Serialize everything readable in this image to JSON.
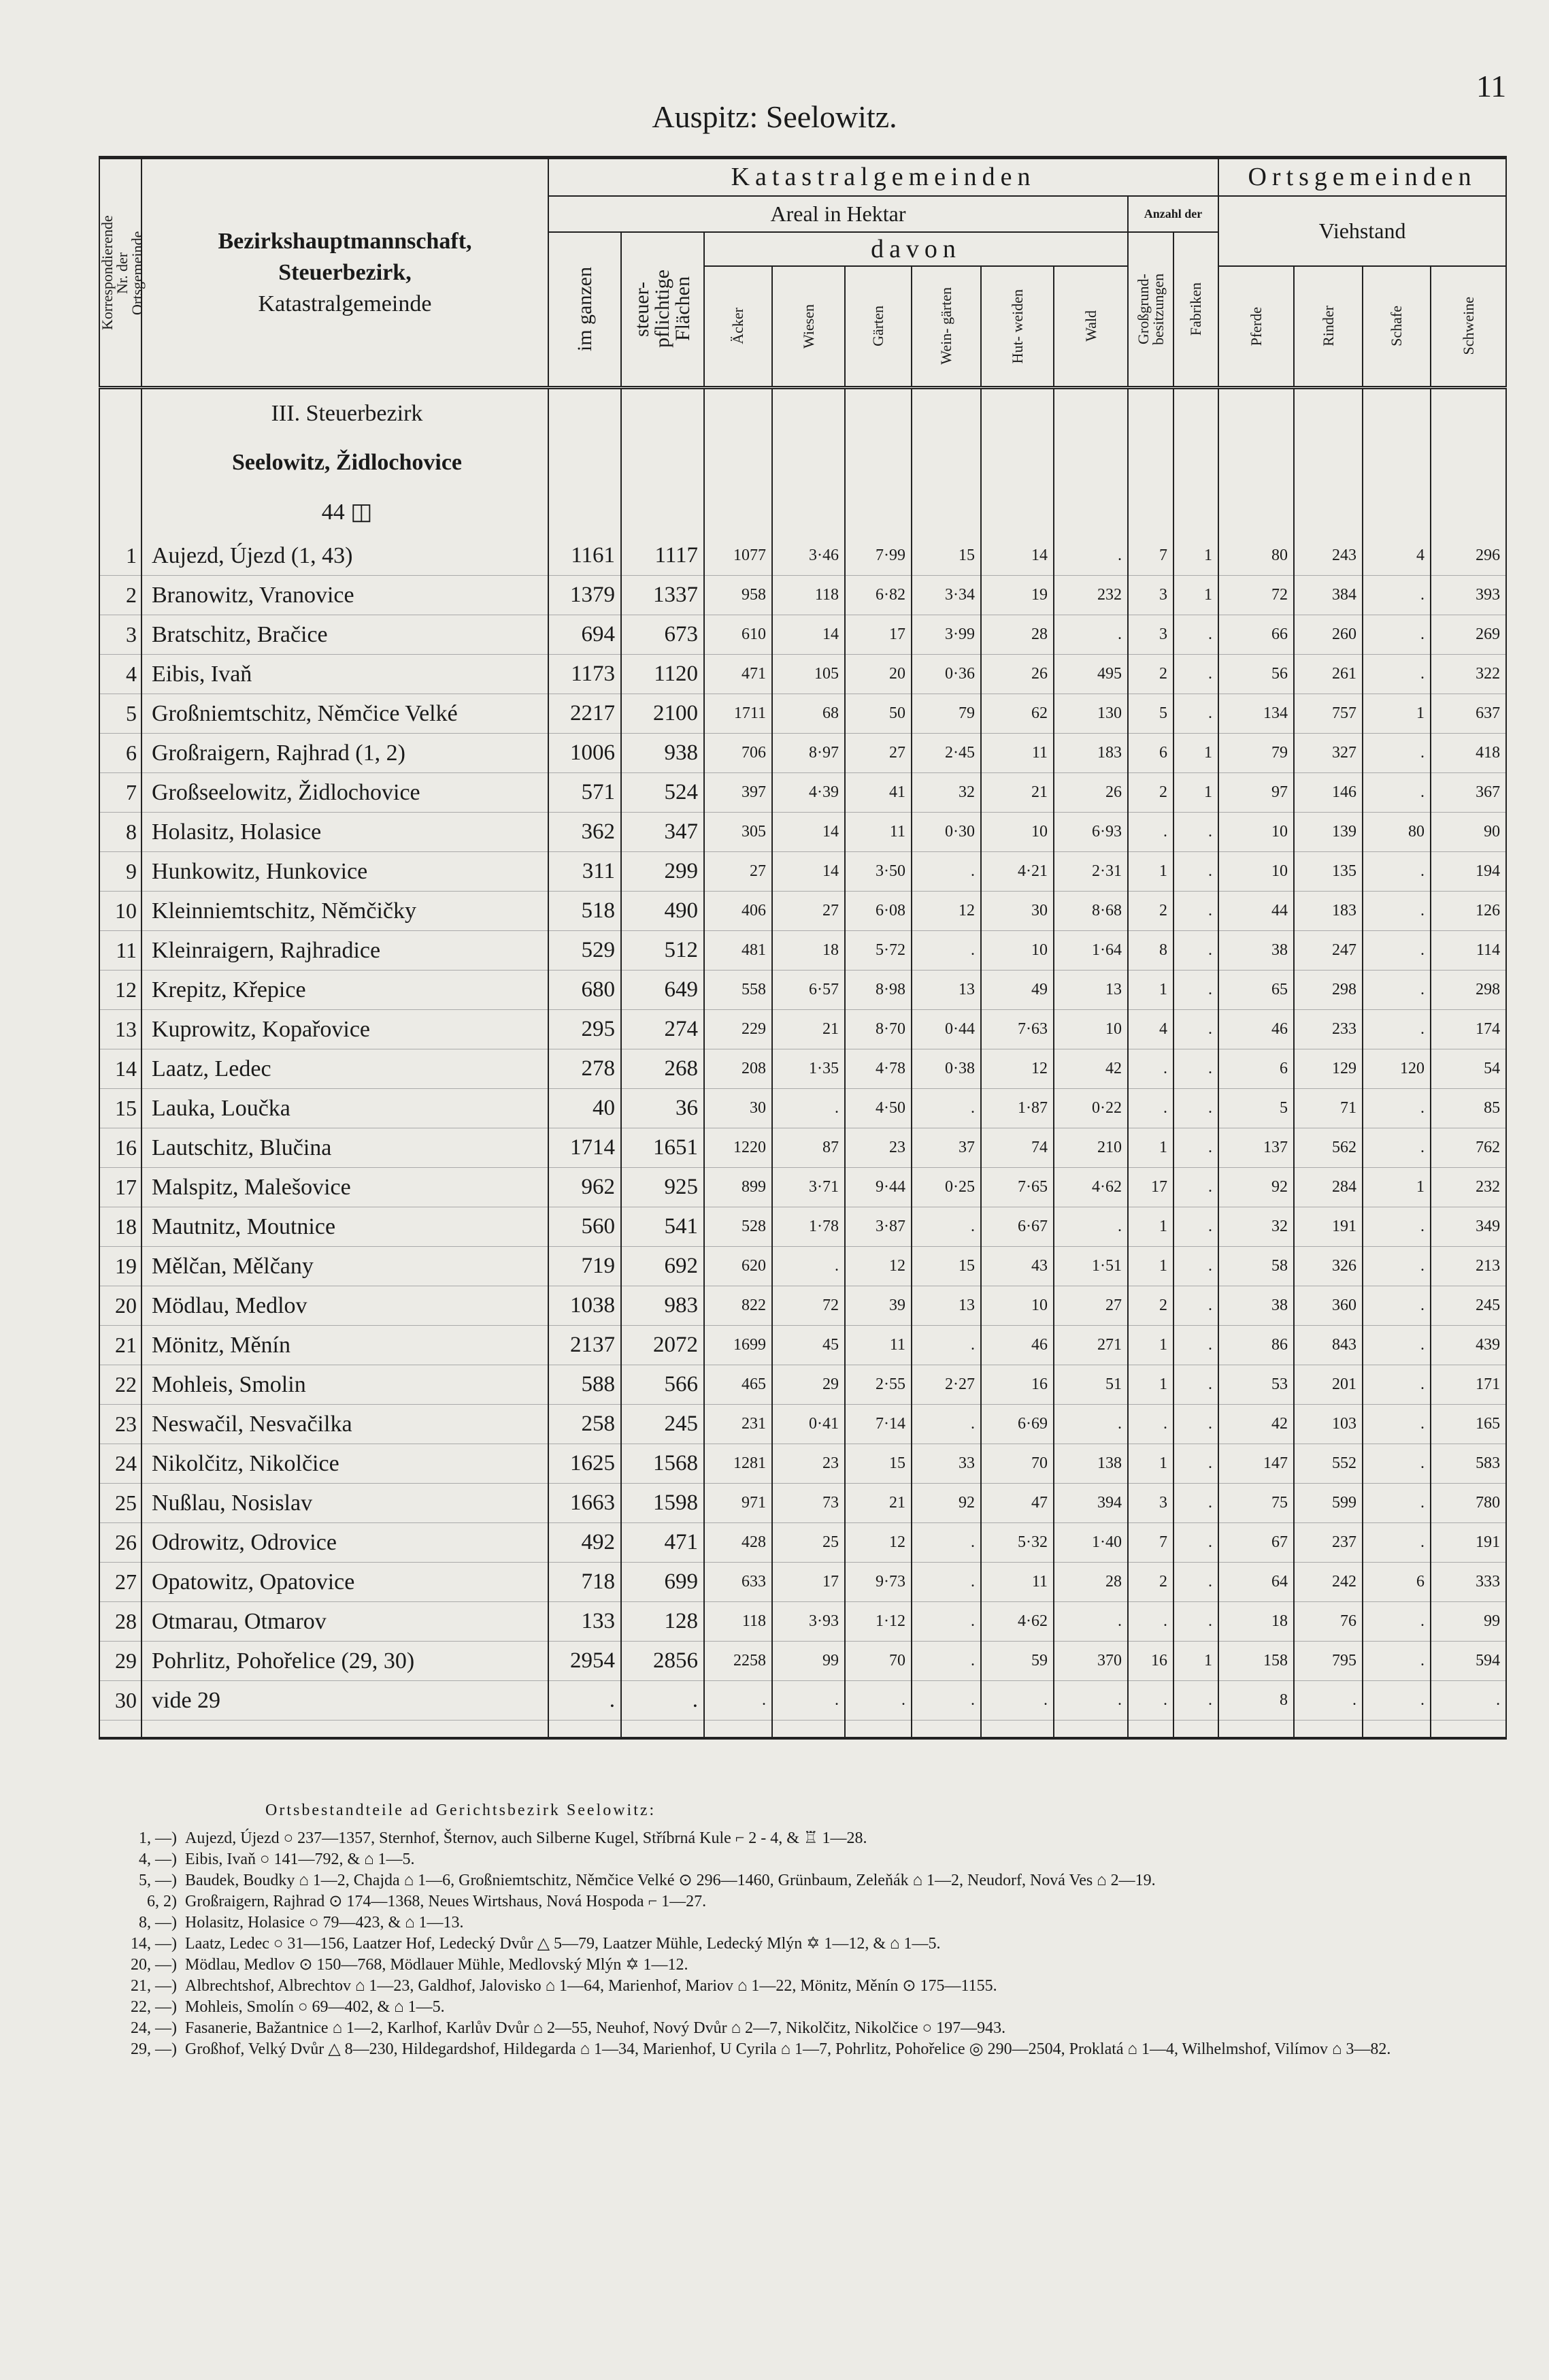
{
  "header": {
    "title": "Auspitz: Seelowitz.",
    "page_number": "11"
  },
  "table": {
    "headers": {
      "nr": "Korrespondierende Nr. der Ortsgemeinde",
      "name": [
        "Bezirkshauptmannschaft,",
        "Steuerbezirk,",
        "Katastralgemeinde"
      ],
      "katastral": "Katastralgemeinden",
      "orts": "Ortsgemeinden",
      "areal": "Areal in Hektar",
      "anzahl": "Anzahl der",
      "davon": "davon",
      "viehstand": "Viehstand",
      "columns": [
        "im ganzen",
        "steuer- pflichtige Flächen",
        "Äcker",
        "Wiesen",
        "Gärten",
        "Wein- gärten",
        "Hut- weiden",
        "Wald",
        "Großgrund- besitzungen",
        "Fabriken",
        "Pferde",
        "Rinder",
        "Schafe",
        "Schweine"
      ]
    },
    "section": [
      "III. Steuerbezirk",
      "Seelowitz, Židlochovice",
      "44 ◫"
    ],
    "rows": [
      [
        "1",
        "Aujezd, Újezd (1, 43)",
        "1161",
        "1117",
        "1077",
        "3·46",
        "7·99",
        "15",
        "14",
        ".",
        "7",
        "1",
        "80",
        "243",
        "4",
        "296"
      ],
      [
        "2",
        "Branowitz, Vranovice",
        "1379",
        "1337",
        "958",
        "118",
        "6·82",
        "3·34",
        "19",
        "232",
        "3",
        "1",
        "72",
        "384",
        ".",
        "393"
      ],
      [
        "3",
        "Bratschitz, Bračice",
        "694",
        "673",
        "610",
        "14",
        "17",
        "3·99",
        "28",
        ".",
        "3",
        ".",
        "66",
        "260",
        ".",
        "269"
      ],
      [
        "4",
        "Eibis, Ivaň",
        "1173",
        "1120",
        "471",
        "105",
        "20",
        "0·36",
        "26",
        "495",
        "2",
        ".",
        "56",
        "261",
        ".",
        "322"
      ],
      [
        "5",
        "Großniemtschitz, Němčice Velké",
        "2217",
        "2100",
        "1711",
        "68",
        "50",
        "79",
        "62",
        "130",
        "5",
        ".",
        "134",
        "757",
        "1",
        "637"
      ],
      [
        "6",
        "Großraigern, Rajhrad (1, 2)",
        "1006",
        "938",
        "706",
        "8·97",
        "27",
        "2·45",
        "11",
        "183",
        "6",
        "1",
        "79",
        "327",
        ".",
        "418"
      ],
      [
        "7",
        "Großseelowitz, Židlochovice",
        "571",
        "524",
        "397",
        "4·39",
        "41",
        "32",
        "21",
        "26",
        "2",
        "1",
        "97",
        "146",
        ".",
        "367"
      ],
      [
        "8",
        "Holasitz, Holasice",
        "362",
        "347",
        "305",
        "14",
        "11",
        "0·30",
        "10",
        "6·93",
        ".",
        ".",
        "10",
        "139",
        "80",
        "90"
      ],
      [
        "9",
        "Hunkowitz, Hunkovice",
        "311",
        "299",
        "27",
        "14",
        "3·50",
        ".",
        "4·21",
        "2·31",
        "1",
        ".",
        "10",
        "135",
        ".",
        "194"
      ],
      [
        "10",
        "Kleinniemtschitz, Němčičky",
        "518",
        "490",
        "406",
        "27",
        "6·08",
        "12",
        "30",
        "8·68",
        "2",
        ".",
        "44",
        "183",
        ".",
        "126"
      ],
      [
        "11",
        "Kleinraigern, Rajhradice",
        "529",
        "512",
        "481",
        "18",
        "5·72",
        ".",
        "10",
        "1·64",
        "8",
        ".",
        "38",
        "247",
        ".",
        "114"
      ],
      [
        "12",
        "Krepitz, Křepice",
        "680",
        "649",
        "558",
        "6·57",
        "8·98",
        "13",
        "49",
        "13",
        "1",
        ".",
        "65",
        "298",
        ".",
        "298"
      ],
      [
        "13",
        "Kuprowitz, Kopařovice",
        "295",
        "274",
        "229",
        "21",
        "8·70",
        "0·44",
        "7·63",
        "10",
        "4",
        ".",
        "46",
        "233",
        ".",
        "174"
      ],
      [
        "14",
        "Laatz, Ledec",
        "278",
        "268",
        "208",
        "1·35",
        "4·78",
        "0·38",
        "12",
        "42",
        ".",
        ".",
        "6",
        "129",
        "120",
        "54"
      ],
      [
        "15",
        "Lauka, Loučka",
        "40",
        "36",
        "30",
        ".",
        "4·50",
        ".",
        "1·87",
        "0·22",
        ".",
        ".",
        "5",
        "71",
        ".",
        "85"
      ],
      [
        "16",
        "Lautschitz, Blučina",
        "1714",
        "1651",
        "1220",
        "87",
        "23",
        "37",
        "74",
        "210",
        "1",
        ".",
        "137",
        "562",
        ".",
        "762"
      ],
      [
        "17",
        "Malspitz, Malešovice",
        "962",
        "925",
        "899",
        "3·71",
        "9·44",
        "0·25",
        "7·65",
        "4·62",
        "17",
        ".",
        "92",
        "284",
        "1",
        "232"
      ],
      [
        "18",
        "Mautnitz, Moutnice",
        "560",
        "541",
        "528",
        "1·78",
        "3·87",
        ".",
        "6·67",
        ".",
        "1",
        ".",
        "32",
        "191",
        ".",
        "349"
      ],
      [
        "19",
        "Mělčan, Mělčany",
        "719",
        "692",
        "620",
        ".",
        "12",
        "15",
        "43",
        "1·51",
        "1",
        ".",
        "58",
        "326",
        ".",
        "213"
      ],
      [
        "20",
        "Mödlau, Medlov",
        "1038",
        "983",
        "822",
        "72",
        "39",
        "13",
        "10",
        "27",
        "2",
        ".",
        "38",
        "360",
        ".",
        "245"
      ],
      [
        "21",
        "Mönitz, Měnín",
        "2137",
        "2072",
        "1699",
        "45",
        "11",
        ".",
        "46",
        "271",
        "1",
        ".",
        "86",
        "843",
        ".",
        "439"
      ],
      [
        "22",
        "Mohleis, Smolin",
        "588",
        "566",
        "465",
        "29",
        "2·55",
        "2·27",
        "16",
        "51",
        "1",
        ".",
        "53",
        "201",
        ".",
        "171"
      ],
      [
        "23",
        "Neswačil, Nesvačilka",
        "258",
        "245",
        "231",
        "0·41",
        "7·14",
        ".",
        "6·69",
        ".",
        ".",
        ".",
        "42",
        "103",
        ".",
        "165"
      ],
      [
        "24",
        "Nikolčitz, Nikolčice",
        "1625",
        "1568",
        "1281",
        "23",
        "15",
        "33",
        "70",
        "138",
        "1",
        ".",
        "147",
        "552",
        ".",
        "583"
      ],
      [
        "25",
        "Nußlau, Nosislav",
        "1663",
        "1598",
        "971",
        "73",
        "21",
        "92",
        "47",
        "394",
        "3",
        ".",
        "75",
        "599",
        ".",
        "780"
      ],
      [
        "26",
        "Odrowitz, Odrovice",
        "492",
        "471",
        "428",
        "25",
        "12",
        ".",
        "5·32",
        "1·40",
        "7",
        ".",
        "67",
        "237",
        ".",
        "191"
      ],
      [
        "27",
        "Opatowitz, Opatovice",
        "718",
        "699",
        "633",
        "17",
        "9·73",
        ".",
        "11",
        "28",
        "2",
        ".",
        "64",
        "242",
        "6",
        "333"
      ],
      [
        "28",
        "Otmarau, Otmarov",
        "133",
        "128",
        "118",
        "3·93",
        "1·12",
        ".",
        "4·62",
        ".",
        ".",
        ".",
        "18",
        "76",
        ".",
        "99"
      ],
      [
        "29",
        "Pohrlitz, Pohořelice (29, 30)",
        "2954",
        "2856",
        "2258",
        "99",
        "70",
        ".",
        "59",
        "370",
        "16",
        "1",
        "158",
        "795",
        ".",
        "594"
      ],
      [
        "30",
        "vide 29",
        ".",
        ".",
        ".",
        ".",
        ".",
        ".",
        ".",
        ".",
        ".",
        ".",
        "8",
        ".",
        ".",
        "."
      ]
    ]
  },
  "footnotes": {
    "title": "Ortsbestandteile ad Gerichtsbezirk Seelowitz:",
    "lines": [
      {
        "ref": "1, —)",
        "text": "Aujezd, Újezd ○ 237—1357, Sternhof, Šternov, auch Silberne Kugel, Stříbrná Kule ⌐ 2 - 4, & ♖ 1—28."
      },
      {
        "ref": "4, —)",
        "text": "Eibis, Ivaň ○ 141—792, & ⌂ 1—5."
      },
      {
        "ref": "5, —)",
        "text": "Baudek, Boudky ⌂ 1—2, Chajda ⌂ 1—6, Großniemtschitz, Němčice Velké ⊙ 296—1460, Grünbaum, Zeleňák ⌂ 1—2, Neudorf, Nová Ves ⌂ 2—19."
      },
      {
        "ref": "6, 2)",
        "text": "Großraigern, Rajhrad ⊙ 174—1368, Neues Wirtshaus, Nová Hospoda ⌐ 1—27."
      },
      {
        "ref": "8, —)",
        "text": "Holasitz, Holasice ○ 79—423, & ⌂ 1—13."
      },
      {
        "ref": "14, —)",
        "text": "Laatz, Ledec ○ 31—156, Laatzer Hof, Ledecký Dvůr △ 5—79, Laatzer Mühle, Ledecký Mlýn ✡ 1—12, & ⌂ 1—5."
      },
      {
        "ref": "20, —)",
        "text": "Mödlau, Medlov ⊙ 150—768, Mödlauer Mühle, Medlovský Mlýn ✡ 1—12."
      },
      {
        "ref": "21, —)",
        "text": "Albrechtshof, Albrechtov ⌂ 1—23, Galdhof, Jalovisko ⌂ 1—64, Marienhof, Mariov ⌂ 1—22, Mönitz, Měnín ⊙ 175—1155."
      },
      {
        "ref": "22, —)",
        "text": "Mohleis, Smolín ○ 69—402, & ⌂ 1—5."
      },
      {
        "ref": "24, —)",
        "text": "Fasanerie, Bažantnice ⌂ 1—2, Karlhof, Karlův Dvůr ⌂ 2—55, Neuhof, Nový Dvůr ⌂ 2—7, Nikolčitz, Nikolčice ○ 197—943."
      },
      {
        "ref": "29, —)",
        "text": "Großhof, Velký Dvůr △ 8—230, Hildegardshof, Hildegarda ⌂ 1—34, Marienhof, U Cyrila ⌂ 1—7, Pohrlitz, Pohořelice ◎ 290—2504, Proklatá ⌂ 1—4, Wilhelmshof, Vilímov ⌂ 3—82."
      }
    ]
  }
}
